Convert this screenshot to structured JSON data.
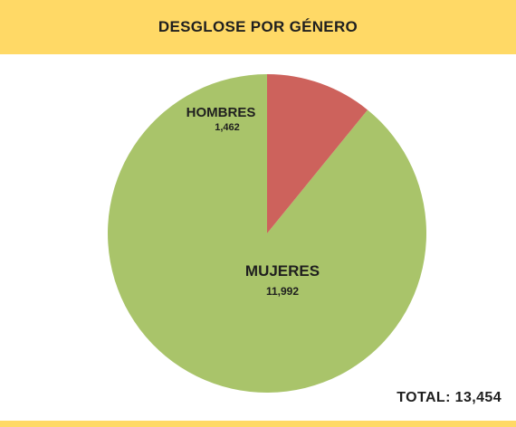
{
  "header": {
    "title": "DESGLOSE POR GÉNERO"
  },
  "colors": {
    "banner": "#ffd966",
    "female": "#a9c46a",
    "male": "#cd625c"
  },
  "chart_data": {
    "type": "pie",
    "title": "DESGLOSE POR GÉNERO",
    "slices": [
      {
        "label": "MUJERES",
        "value": 11992,
        "value_label": "11,992",
        "color": "#a9c46a"
      },
      {
        "label": "HOMBRES",
        "value": 1462,
        "value_label": "1,462",
        "color": "#cd625c"
      }
    ],
    "total_label": "TOTAL: 13,454"
  }
}
